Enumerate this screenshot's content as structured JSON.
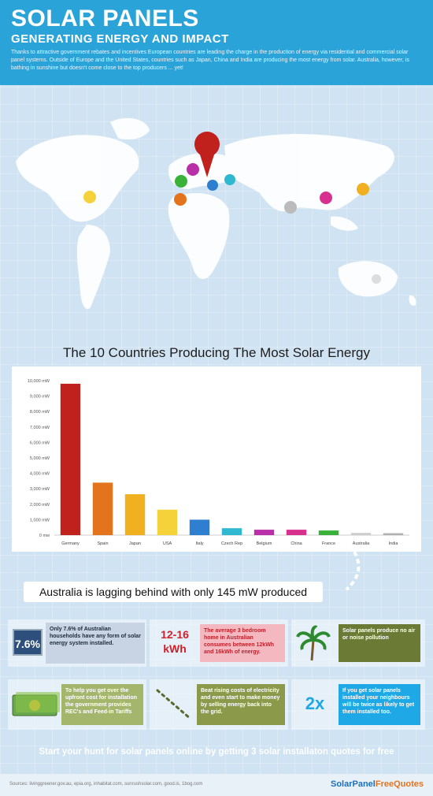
{
  "header": {
    "title": "SOLAR PANELS",
    "subtitle": "GENERATING ENERGY AND IMPACT",
    "intro": "Thanks to attractive government rebates and incentives European countries are leading the charge in the production of energy via residential and commercial solar panel systems. Outside of Europe and the United States, countries such as Japan, China and India are producing the most energy from solar. Australia, however, is bathing in sunshine but doesn't come close to the top producers ... yet!"
  },
  "chart_data": {
    "type": "bar",
    "title": "The 10 Countries Producing The Most Solar Energy",
    "categories": [
      "Germany",
      "Spain",
      "Japan",
      "USA",
      "Italy",
      "Czech Rep",
      "Belgium",
      "China",
      "France",
      "Australia",
      "India"
    ],
    "values": [
      9800,
      3400,
      2650,
      1650,
      1000,
      450,
      350,
      350,
      300,
      145,
      120
    ],
    "colors": [
      "#c0211c",
      "#e3731c",
      "#f0b020",
      "#f5d23a",
      "#2f7fd0",
      "#2fb8d0",
      "#b82fa8",
      "#d8308f",
      "#3ab23a",
      "#cccccc",
      "#b0b0b0"
    ],
    "ylim": [
      0,
      10000
    ],
    "yticks": [
      "0 mw",
      "1,000 mW",
      "2,000 mW",
      "3,000 mW",
      "4,000 mW",
      "5,000 mW",
      "6,000 mW",
      "7,000 mW",
      "8,000 mW",
      "9,000 mW",
      "10,000 mW"
    ],
    "grid": false
  },
  "callout": "Australia is lagging behind with only 145 mW produced",
  "tiles": {
    "t1_stat": "7.6%",
    "t1_text": "Only 7.6% of Australian households have any form of solar energy system installed.",
    "t2_stat": "12-16 kWh",
    "t2_text": "The average 3 bedroom home in Australian consumes between 12kWh and 16kWh of energy.",
    "t3_text": "Solar panels produce no air or noise pollution",
    "t4_text": "To help you get over the upfront cost for installation the government provides REC's and Feed-in Tariffs",
    "t5_text": "Beat rising costs of electricity and even start to make money by selling energy back into the grid.",
    "t6_stat": "2x",
    "t6_text": "If you get solar panels installed your neighbours will be twice as likely to get them installed too."
  },
  "footer": {
    "cta": "Start your hunt for solar panels online by getting 3 solar installaton quotes for free",
    "sources": "Sources: livinggreener.gov.au, epia.org, inhabitat.com, sunrushsolar.com, good.is, 1bog.com",
    "brand_part1": "SolarPanel",
    "brand_part2": "FreeQuotes"
  },
  "colors": {
    "header_bg": "#2aa3d9",
    "tile_dark": "#2c4f7c",
    "tile_pink": "#f4b8c0",
    "tile_green": "#6b7a35",
    "tile_blue": "#1ea8e6"
  }
}
